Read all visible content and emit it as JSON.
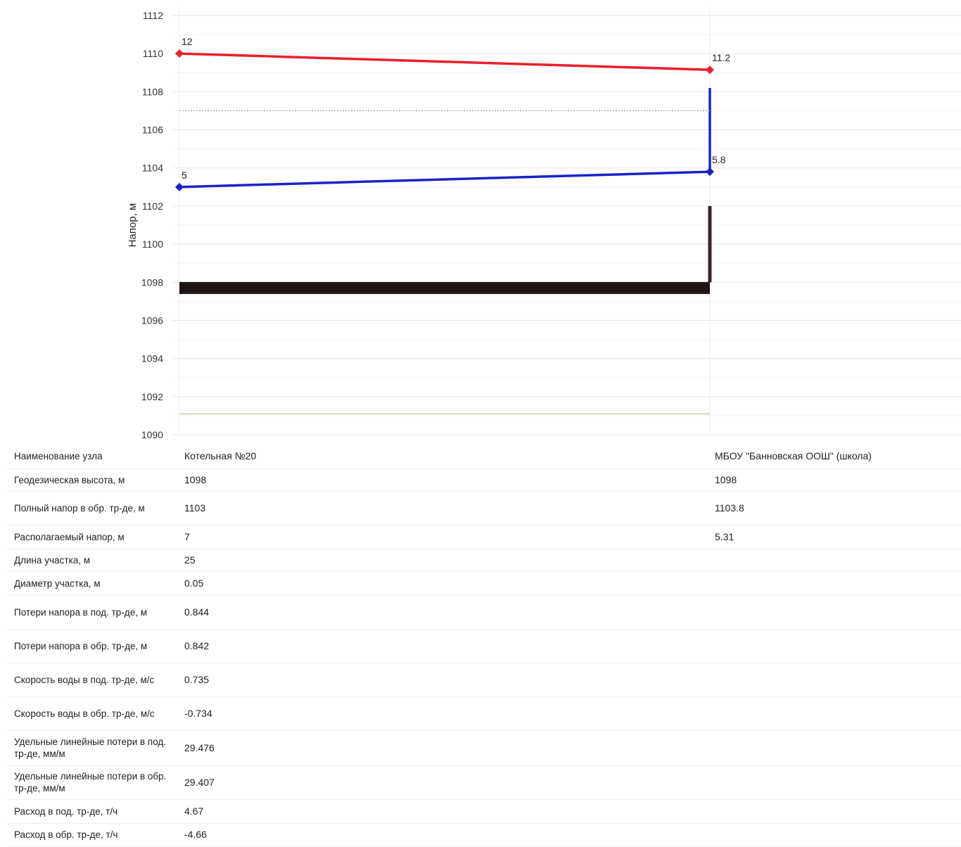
{
  "chart_data": {
    "type": "line",
    "ylabel": "Напор, м",
    "ylim": [
      1090,
      1112
    ],
    "yticks": [
      "1090",
      "1092",
      "1094",
      "1096",
      "1098",
      "1100",
      "1102",
      "1104",
      "1106",
      "1108",
      "1110",
      "1112"
    ],
    "grid": true,
    "nodes": [
      "Котельная №20",
      "МБОУ \"Банновская ООШ\" (школа)"
    ],
    "series": [
      {
        "key": "supply",
        "color": "#e8202a",
        "points": [
          [
            0,
            1110
          ],
          [
            1,
            1109.15
          ]
        ],
        "labels": [
          "12",
          "11.2"
        ]
      },
      {
        "key": "return",
        "color": "#1c22c8",
        "points": [
          [
            0,
            1103
          ],
          [
            1,
            1103.8
          ]
        ],
        "labels": [
          "5",
          "5.8"
        ]
      },
      {
        "key": "return_riser",
        "color": "#1c22c8",
        "points": [
          [
            1,
            1103.8
          ],
          [
            1,
            1108.2
          ]
        ]
      },
      {
        "key": "ground",
        "color": "#1e1414",
        "points": [
          [
            0,
            1097.7
          ],
          [
            1,
            1097.7
          ]
        ]
      },
      {
        "key": "building",
        "color": "#3a2626",
        "points": [
          [
            1,
            1098
          ],
          [
            1,
            1102
          ]
        ]
      },
      {
        "key": "static_level",
        "color": "#a0a0a0",
        "style": "dotted",
        "points": [
          [
            0,
            1107
          ],
          [
            1,
            1107
          ]
        ]
      },
      {
        "key": "bottom_level",
        "color": "#c8c8a0",
        "points": [
          [
            0,
            1091.1
          ],
          [
            1,
            1091.1
          ]
        ]
      }
    ]
  },
  "table": {
    "rows": [
      {
        "label": "Наименование узла",
        "v1": "Котельная №20",
        "v2": "МБОУ \"Банновская ООШ\" (школа)"
      },
      {
        "label": "Геодезическая высота, м",
        "v1": "1098",
        "v2": "1098"
      },
      {
        "label": "Полный напор в обр. тр-де, м",
        "v1": "1103",
        "v2": "1103.8"
      },
      {
        "label": "Располагаемый напор, м",
        "v1": "7",
        "v2": "5.31"
      },
      {
        "label": "Длина участка, м",
        "v1": "25",
        "v2": ""
      },
      {
        "label": "Диаметр участка, м",
        "v1": "0.05",
        "v2": ""
      },
      {
        "label": "Потери напора в под. тр-де, м",
        "v1": "0.844",
        "v2": ""
      },
      {
        "label": "Потери напора в обр. тр-де, м",
        "v1": "0.842",
        "v2": ""
      },
      {
        "label": "Скорость воды в под. тр-де, м/с",
        "v1": "0.735",
        "v2": ""
      },
      {
        "label": "Скорость воды в обр. тр-де, м/с",
        "v1": "-0.734",
        "v2": ""
      },
      {
        "label": "Удельные линейные потери в под. тр-де, мм/м",
        "v1": "29.476",
        "v2": ""
      },
      {
        "label": "Удельные линейные потери в обр. тр-де, мм/м",
        "v1": "29.407",
        "v2": ""
      },
      {
        "label": "Расход в под. тр-де, т/ч",
        "v1": "4.67",
        "v2": ""
      },
      {
        "label": "Расход в обр. тр-де, т/ч",
        "v1": "-4.66",
        "v2": ""
      }
    ]
  }
}
